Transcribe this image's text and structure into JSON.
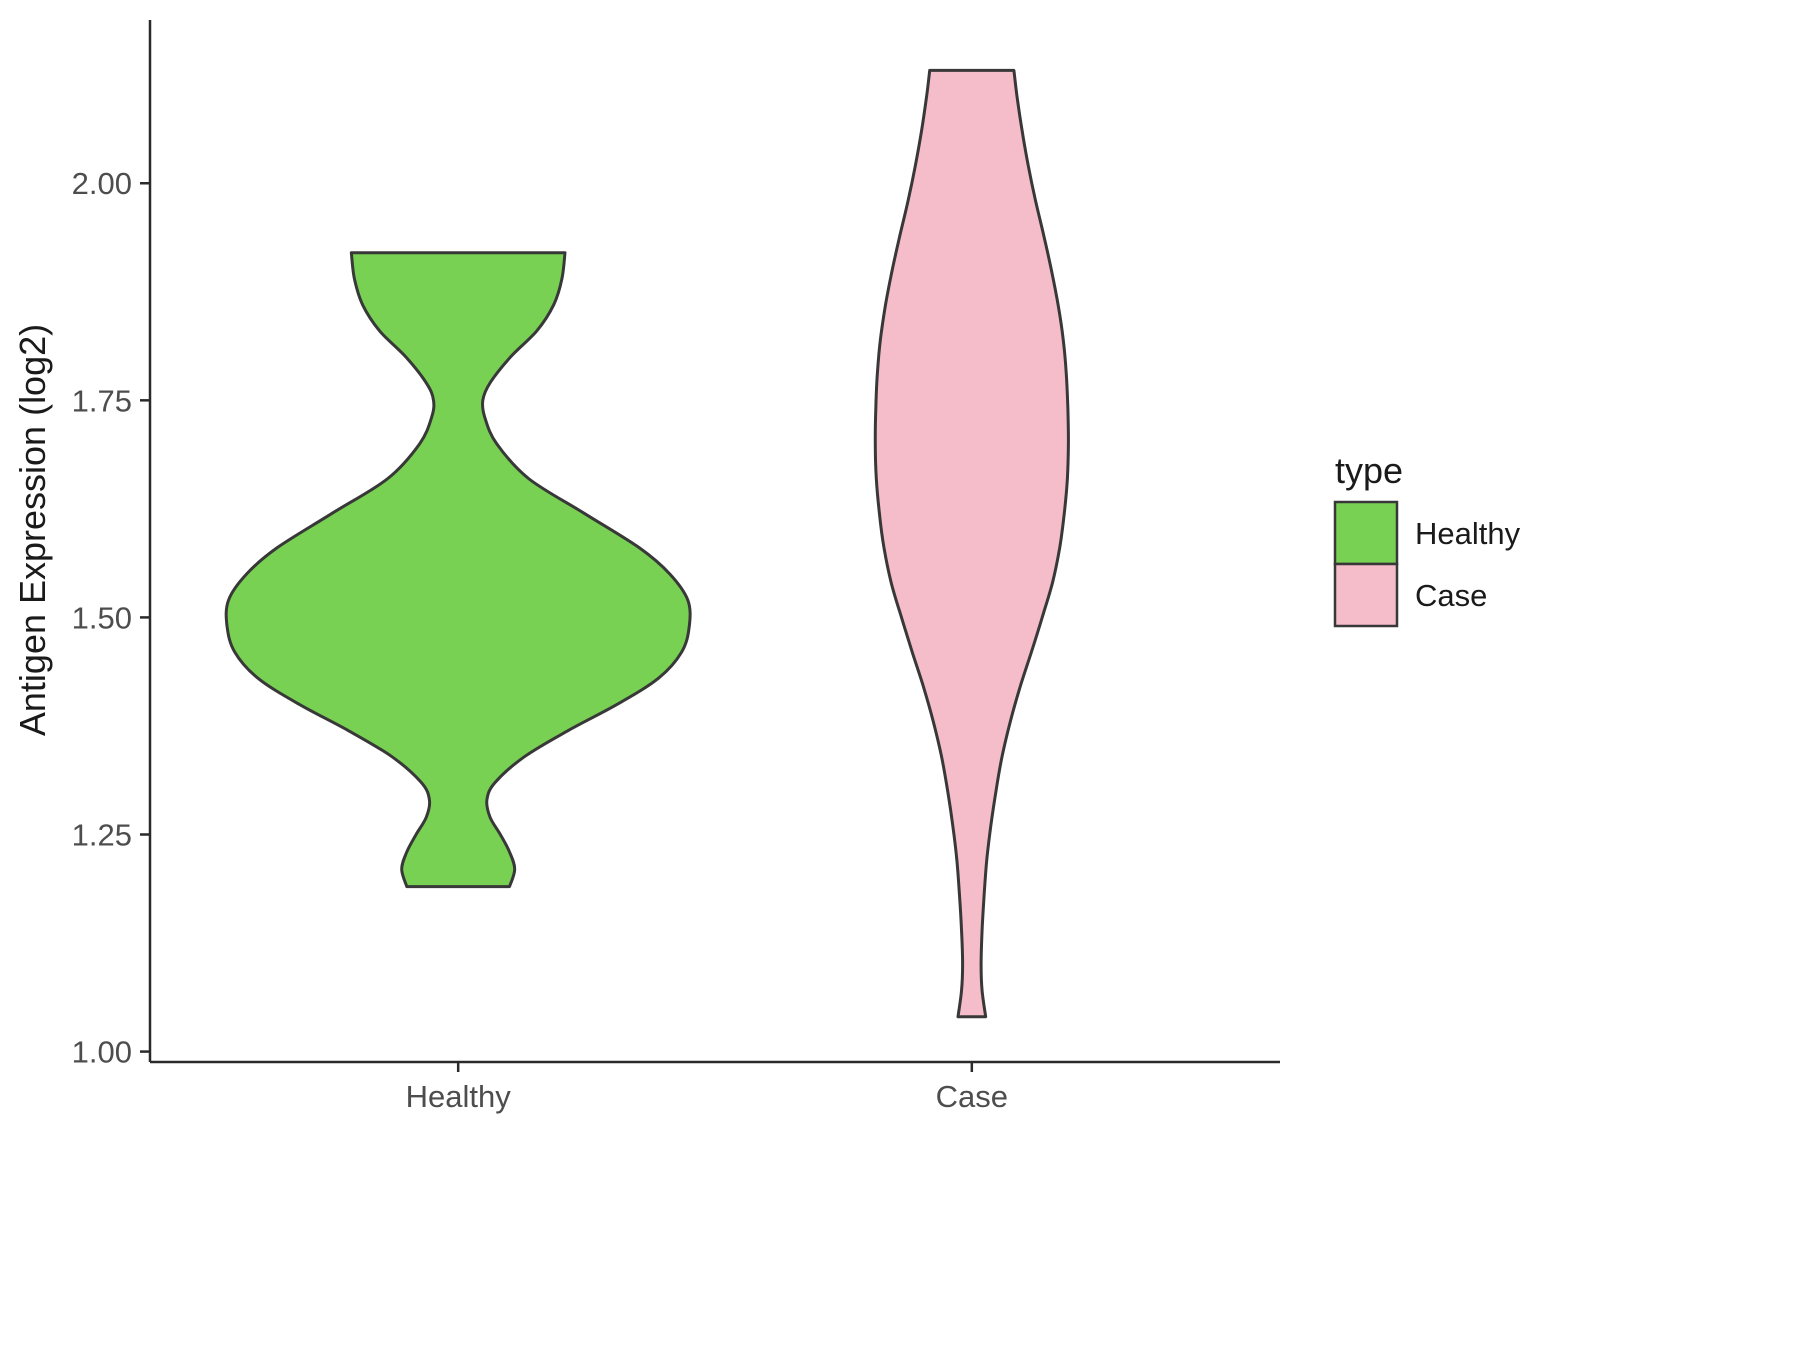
{
  "chart_data": {
    "type": "violin",
    "title": "",
    "xlabel": "",
    "ylabel": "Antigen Expression (log2)",
    "categories": [
      "Healthy",
      "Case"
    ],
    "y_ticks": [
      1.0,
      1.25,
      1.5,
      1.75,
      2.0
    ],
    "y_tick_labels": [
      "1.00",
      "1.25",
      "1.50",
      "1.75",
      "2.00"
    ],
    "ylim": [
      0.988,
      2.188
    ],
    "grid": false,
    "background": "#ffffff",
    "outline_color": "#383838",
    "axis_color": "#2a2a2a",
    "tick_text_color": "#4d4d4d",
    "legend": {
      "title": "type",
      "position": "right",
      "entries": [
        {
          "label": "Healthy",
          "color": "#79d154"
        },
        {
          "label": "Case",
          "color": "#f5bcc9"
        }
      ]
    },
    "violins": [
      {
        "name": "Healthy",
        "color": "#79d154",
        "category_index": 0,
        "value_range": [
          1.19,
          1.92
        ],
        "profile": [
          [
            1.92,
            0.208
          ],
          [
            1.89,
            0.202
          ],
          [
            1.86,
            0.186
          ],
          [
            1.83,
            0.153
          ],
          [
            1.8,
            0.102
          ],
          [
            1.77,
            0.062
          ],
          [
            1.75,
            0.048
          ],
          [
            1.73,
            0.052
          ],
          [
            1.7,
            0.075
          ],
          [
            1.66,
            0.137
          ],
          [
            1.62,
            0.245
          ],
          [
            1.58,
            0.353
          ],
          [
            1.55,
            0.412
          ],
          [
            1.52,
            0.447
          ],
          [
            1.49,
            0.45
          ],
          [
            1.46,
            0.435
          ],
          [
            1.43,
            0.39
          ],
          [
            1.4,
            0.31
          ],
          [
            1.37,
            0.215
          ],
          [
            1.34,
            0.13
          ],
          [
            1.31,
            0.072
          ],
          [
            1.29,
            0.056
          ],
          [
            1.27,
            0.062
          ],
          [
            1.25,
            0.082
          ],
          [
            1.23,
            0.1
          ],
          [
            1.21,
            0.11
          ],
          [
            1.19,
            0.1
          ]
        ]
      },
      {
        "name": "Case",
        "color": "#f5bcc9",
        "category_index": 1,
        "value_range": [
          1.04,
          2.13
        ],
        "profile": [
          [
            2.13,
            0.082
          ],
          [
            2.1,
            0.088
          ],
          [
            2.06,
            0.098
          ],
          [
            2.02,
            0.11
          ],
          [
            1.98,
            0.124
          ],
          [
            1.94,
            0.14
          ],
          [
            1.9,
            0.155
          ],
          [
            1.86,
            0.168
          ],
          [
            1.82,
            0.178
          ],
          [
            1.78,
            0.184
          ],
          [
            1.74,
            0.187
          ],
          [
            1.7,
            0.188
          ],
          [
            1.66,
            0.186
          ],
          [
            1.62,
            0.18
          ],
          [
            1.58,
            0.171
          ],
          [
            1.54,
            0.157
          ],
          [
            1.5,
            0.137
          ],
          [
            1.46,
            0.116
          ],
          [
            1.42,
            0.094
          ],
          [
            1.38,
            0.075
          ],
          [
            1.34,
            0.059
          ],
          [
            1.3,
            0.047
          ],
          [
            1.26,
            0.037
          ],
          [
            1.22,
            0.029
          ],
          [
            1.18,
            0.024
          ],
          [
            1.14,
            0.02
          ],
          [
            1.1,
            0.018
          ],
          [
            1.07,
            0.02
          ],
          [
            1.04,
            0.027
          ]
        ]
      }
    ]
  }
}
